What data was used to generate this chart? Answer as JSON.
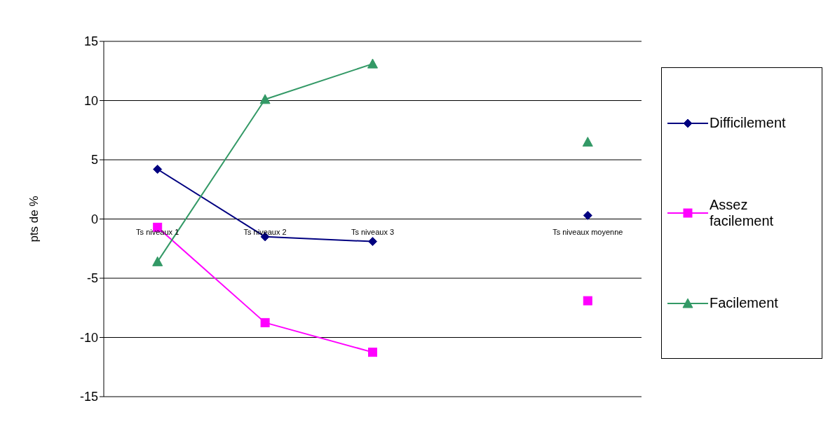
{
  "chart_data": {
    "type": "line",
    "ylabel": "pts de %",
    "categories": [
      "Ts niveaux 1",
      "Ts niveaux 2",
      "Ts niveaux 3",
      null,
      "Ts niveaux moyenne"
    ],
    "series": [
      {
        "name": "Difficilement",
        "color": "#000080",
        "marker": "diamond",
        "values": [
          4.2,
          -1.5,
          -1.9,
          null,
          0.3
        ]
      },
      {
        "name": "Assez facilement",
        "color": "#ff00ff",
        "marker": "square",
        "values": [
          -0.7,
          -8.75,
          -11.25,
          null,
          -6.9
        ]
      },
      {
        "name": "Facilement",
        "color": "#339966",
        "marker": "triangle",
        "values": [
          -3.6,
          10.1,
          13.1,
          null,
          6.5
        ]
      }
    ],
    "ylim": [
      -15,
      15
    ],
    "yticks": [
      -15,
      -10,
      -5,
      0,
      5,
      10,
      15
    ],
    "grid": "y",
    "legend": "right"
  }
}
